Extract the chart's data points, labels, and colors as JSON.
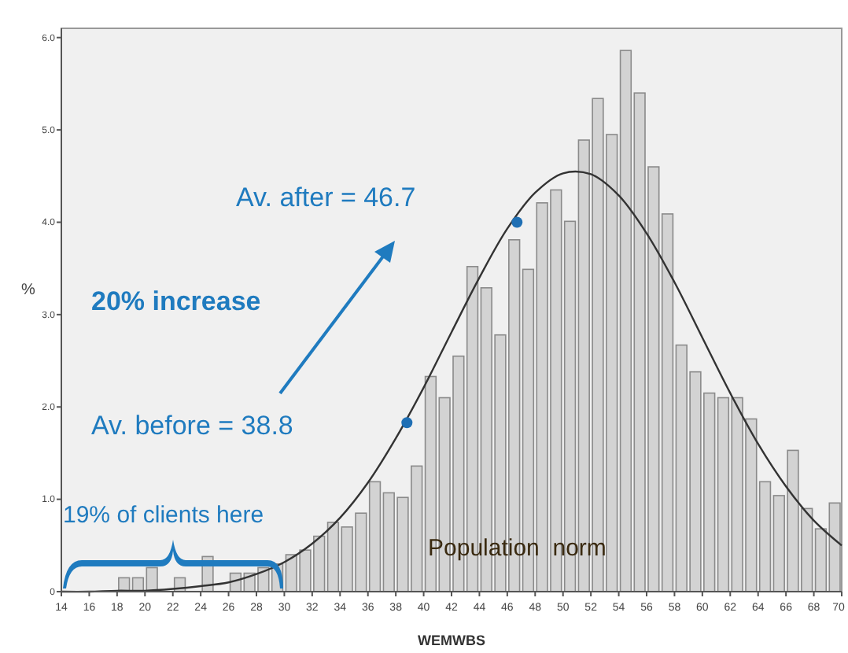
{
  "chart_data": {
    "type": "histogram",
    "xlabel": "WEMWBS",
    "ylabel": "%",
    "bins": [
      14,
      15,
      16,
      17,
      18,
      19,
      20,
      21,
      22,
      23,
      24,
      25,
      26,
      27,
      28,
      29,
      30,
      31,
      32,
      33,
      34,
      35,
      36,
      37,
      38,
      39,
      40,
      41,
      42,
      43,
      44,
      45,
      46,
      47,
      48,
      49,
      50,
      51,
      52,
      53,
      54,
      55,
      56,
      57,
      58,
      59,
      60,
      61,
      62,
      63,
      64,
      65,
      66,
      67,
      68,
      69,
      70
    ],
    "values": [
      0,
      0,
      0,
      0,
      0.15,
      0.15,
      0.26,
      0,
      0.15,
      0,
      0.38,
      0,
      0.2,
      0.2,
      0.26,
      0.3,
      0.4,
      0.45,
      0.6,
      0.75,
      0.7,
      0.85,
      1.19,
      1.07,
      1.02,
      1.36,
      2.33,
      2.1,
      2.55,
      3.52,
      3.29,
      2.78,
      3.81,
      3.49,
      4.21,
      4.35,
      4.01,
      4.89,
      5.34,
      4.95,
      5.86,
      5.4,
      4.6,
      4.09,
      2.67,
      2.38,
      2.15,
      2.1,
      2.1,
      1.87,
      1.19,
      1.04,
      1.53,
      0.9,
      0.68,
      0.96
    ],
    "color": "#d3d3d3",
    "series": [
      {
        "type": "line",
        "color": "#333333",
        "x": [
          14,
          16,
          18,
          20,
          22,
          24,
          26,
          28,
          30,
          32,
          34,
          36,
          38,
          40,
          42,
          44,
          46,
          48,
          50,
          52,
          54,
          56,
          58,
          60,
          62,
          64,
          66,
          68,
          70
        ],
        "values": [
          0,
          0,
          0.01,
          0.01,
          0.03,
          0.06,
          0.1,
          0.19,
          0.32,
          0.52,
          0.8,
          1.18,
          1.66,
          2.21,
          2.81,
          3.4,
          3.93,
          4.32,
          4.53,
          4.52,
          4.29,
          3.88,
          3.35,
          2.75,
          2.15,
          1.6,
          1.14,
          0.77,
          0.5
        ]
      },
      {
        "type": "scatter",
        "color": "#1f6fb4",
        "marker": "circle",
        "x": [
          38.8,
          46.7
        ],
        "values": [
          1.83,
          4.0
        ]
      }
    ],
    "xlim": [
      14,
      70
    ],
    "ylim": [
      0,
      6.1
    ],
    "xticks": [
      14,
      16,
      18,
      20,
      22,
      24,
      26,
      28,
      30,
      32,
      34,
      36,
      38,
      40,
      42,
      44,
      46,
      48,
      50,
      52,
      54,
      56,
      58,
      60,
      62,
      64,
      66,
      68,
      70
    ],
    "yticks": [
      0,
      {
        "value": 1,
        "label": "1.0"
      },
      {
        "value": 2,
        "label": "2.0"
      },
      {
        "value": 3,
        "label": "3.0"
      },
      {
        "value": 4,
        "label": "4.0"
      },
      {
        "value": 5,
        "label": "5.0"
      },
      {
        "value": 6,
        "label": "6.0"
      }
    ],
    "annotations": [
      "Av. after = 46.7",
      "20% increase",
      "Av. before = 38.8",
      "19% of clients here",
      "Population  norm"
    ]
  }
}
